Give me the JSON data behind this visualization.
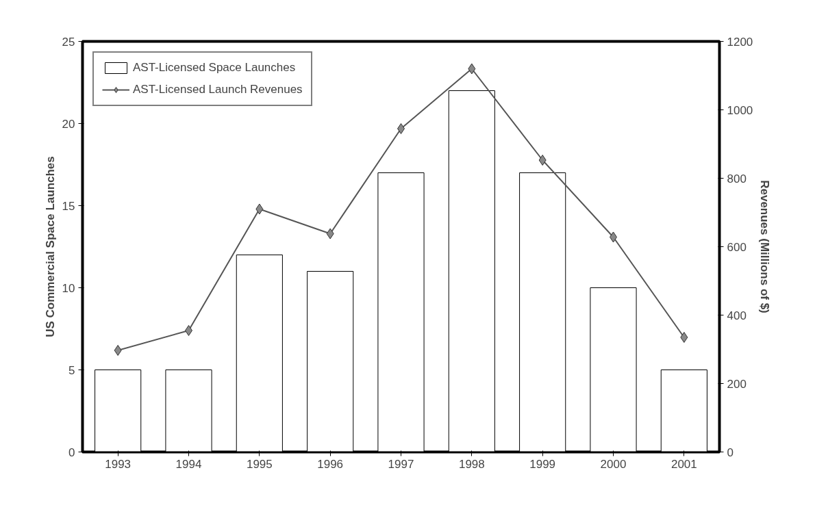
{
  "chart_data": {
    "type": "bar",
    "categories": [
      "1993",
      "1994",
      "1995",
      "1996",
      "1997",
      "1998",
      "1999",
      "2000",
      "2001"
    ],
    "ylabel": "US Commercial Space Launches",
    "y2label": "Revenues (Millions of $)",
    "ylim": [
      0,
      25
    ],
    "yticks": [
      0,
      5,
      10,
      15,
      20,
      25
    ],
    "y2lim": [
      0,
      1200
    ],
    "y2ticks": [
      0,
      200,
      400,
      600,
      800,
      1000,
      1200
    ],
    "grid": false,
    "legend": "top left",
    "marker": "diamond",
    "line_style": "solid",
    "series": [
      {
        "name": "AST-Licensed Space Launches",
        "color": "#ffffff",
        "values": [
          5,
          5,
          12,
          11,
          17,
          22,
          17,
          10,
          5
        ]
      },
      {
        "name": "AST-Licensed Launch Revenues",
        "type": "line",
        "axis": "y2",
        "color": "#555555",
        "values": [
          297,
          355,
          710,
          638,
          945,
          1120,
          853,
          628,
          335
        ]
      }
    ]
  }
}
